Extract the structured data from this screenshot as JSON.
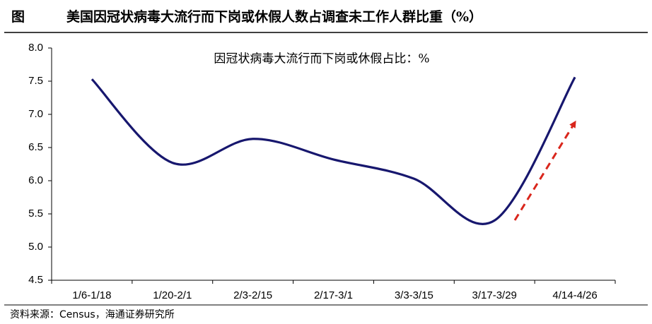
{
  "chart_data": {
    "type": "line",
    "figure_label": "图",
    "title": "美国因冠状病毒大流行而下岗或休假人数占调查未工作人群比重（%）",
    "source": "资料来源：Census，海通证券研究所",
    "categories": [
      "1/6-1/18",
      "1/20-2/1",
      "2/3-2/15",
      "2/17-3/1",
      "3/3-3/15",
      "3/17-3/29",
      "4/14-4/26"
    ],
    "series": [
      {
        "name": "因冠状病毒大流行而下岗或休假占比：%",
        "color": "#17176e",
        "values": [
          7.53,
          6.27,
          6.63,
          6.32,
          6.03,
          5.4,
          7.56
        ]
      }
    ],
    "ylim": [
      4.5,
      8.0
    ],
    "yticks": [
      4.5,
      {
        "value": 5,
        "label": "5.0"
      },
      5.5,
      {
        "value": 6,
        "label": "6.0"
      },
      6.5,
      {
        "value": 7,
        "label": "7.0"
      },
      7.5,
      {
        "value": 8,
        "label": "8.0"
      }
    ],
    "grid": false
  }
}
